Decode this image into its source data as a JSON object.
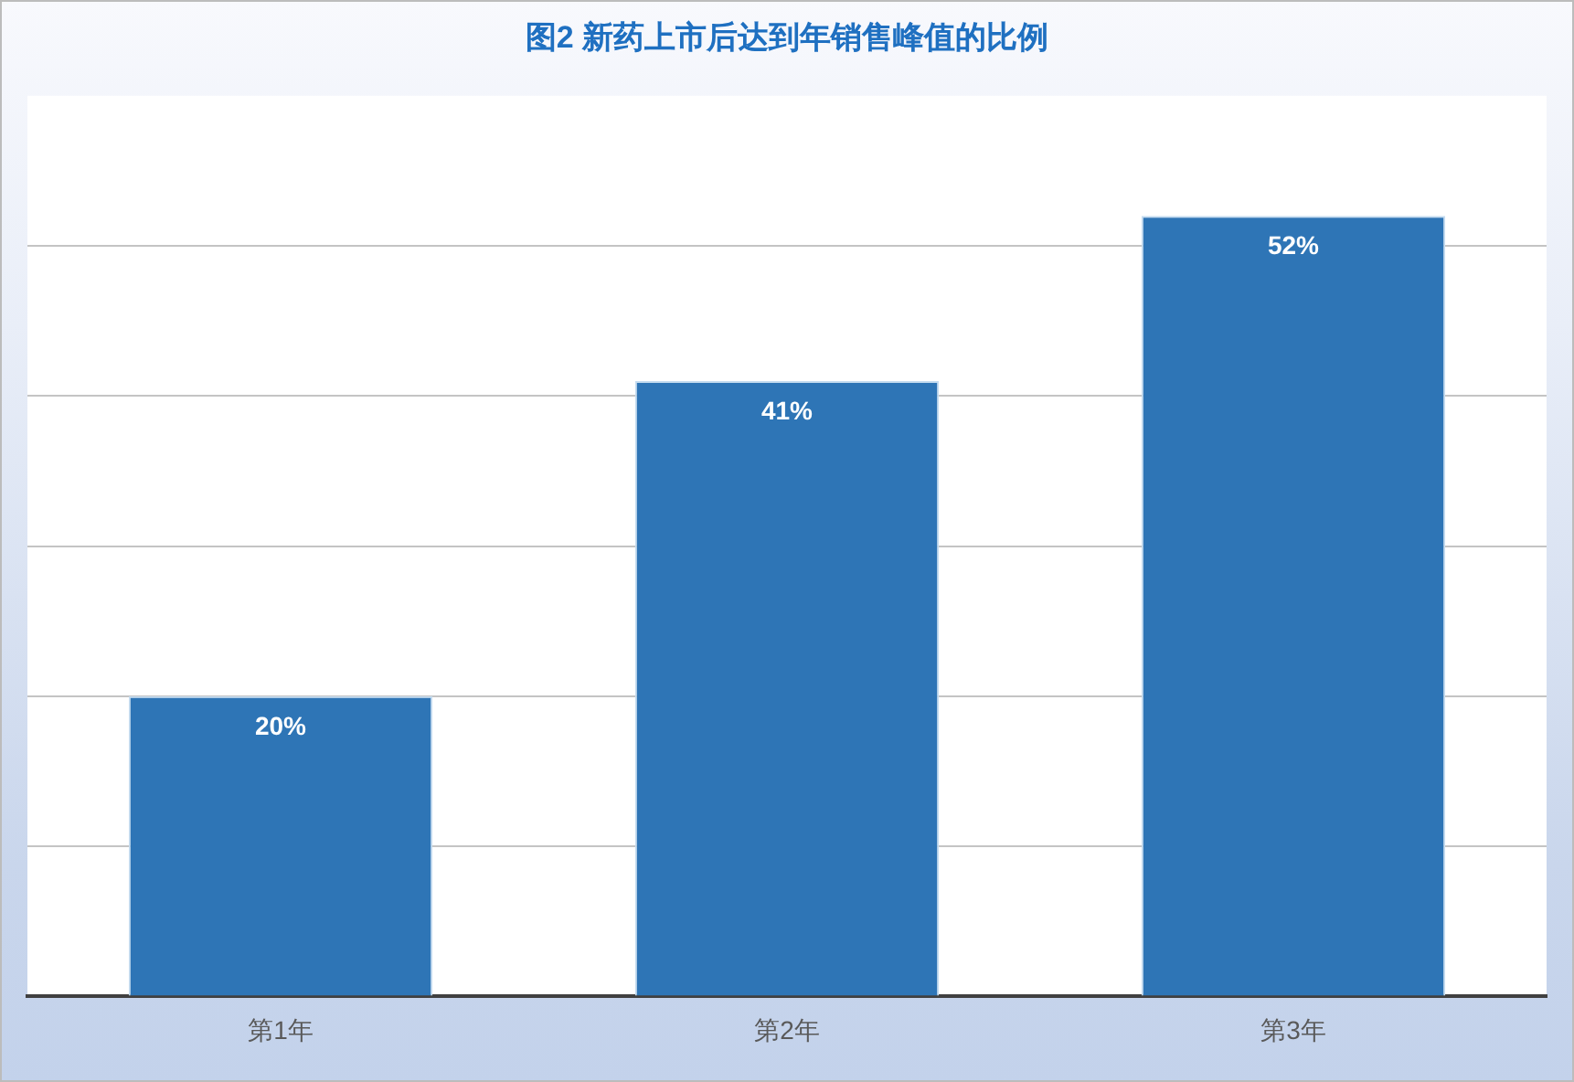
{
  "chart_data": {
    "type": "bar",
    "title": "图2 新药上市后达到年销售峰值的比例",
    "categories": [
      "第1年",
      "第2年",
      "第3年"
    ],
    "values": [
      20,
      41,
      52
    ],
    "value_labels": [
      "20%",
      "41%",
      "52%"
    ],
    "color": "#2e75b6",
    "ylim": [
      0,
      60
    ],
    "yticks": [
      {
        "value": 0,
        "label": null
      },
      {
        "value": 10,
        "label": null
      },
      {
        "value": 20,
        "label": null
      },
      {
        "value": 30,
        "label": null
      },
      {
        "value": 40,
        "label": null
      },
      {
        "value": 50,
        "label": null
      }
    ],
    "grid": "y",
    "tick_labels": "x"
  }
}
